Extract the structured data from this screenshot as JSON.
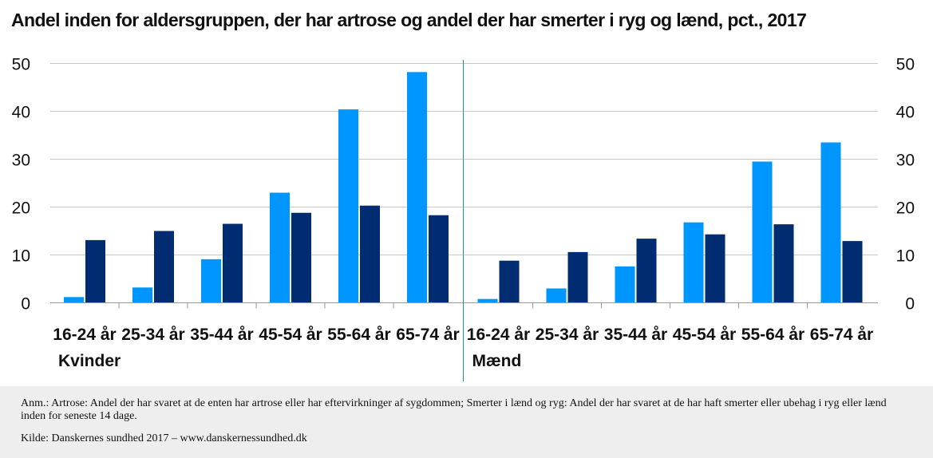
{
  "notes": {
    "annotation": "Anm.: Artrose: Andel der har svaret at de enten har artrose eller har eftervirkninger af sygdommen; Smerter i lænd og ryg: Andel der har svaret at de har haft smerter eller ubehag i ryg eller lænd inden for seneste 14 dage.",
    "source": "Kilde:  Danskernes sundhed 2017 – www.danskernessundhed.dk"
  },
  "chart_data": {
    "type": "bar",
    "title": "Andel inden for aldersgruppen, der har artrose og andel der har smerter i ryg og lænd, pct., 2017",
    "xlabel": "",
    "ylabel": "",
    "ylim": [
      0,
      50
    ],
    "yticks": [
      0,
      10,
      20,
      30,
      40,
      50
    ],
    "grid": true,
    "groups": [
      "Kvinder",
      "Mænd"
    ],
    "categories": [
      "16-24 år",
      "25-34 år",
      "35-44 år",
      "45-54 år",
      "55-64 år",
      "65-74 år",
      "16-24 år",
      "25-34 år",
      "35-44 år",
      "45-54 år",
      "55-64 år",
      "65-74 år"
    ],
    "series": [
      {
        "color": "#0096ff",
        "values": [
          1.2,
          3.2,
          9.1,
          23.0,
          40.4,
          48.2,
          0.8,
          3.0,
          7.6,
          16.8,
          29.5,
          33.5
        ]
      },
      {
        "color": "#002d72",
        "values": [
          13.1,
          15.0,
          16.5,
          18.8,
          20.3,
          18.3,
          8.8,
          10.6,
          13.4,
          14.3,
          16.4,
          12.9
        ]
      }
    ]
  }
}
